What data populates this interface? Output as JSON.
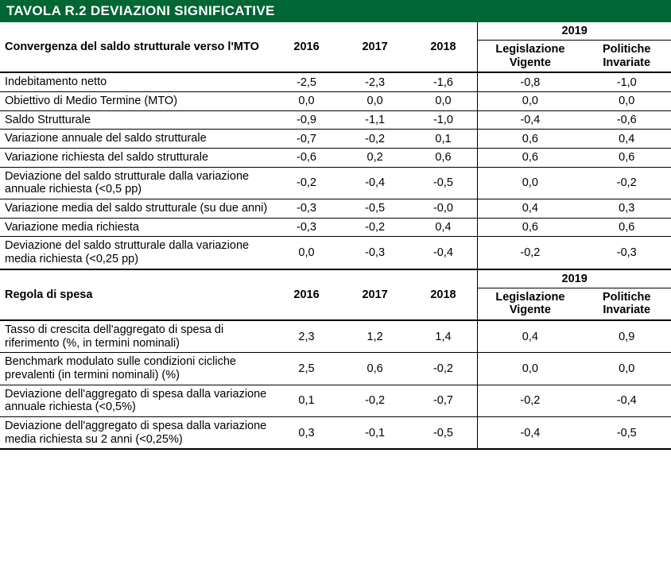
{
  "title": "TAVOLA R.2 DEVIAZIONI SIGNIFICATIVE",
  "colors": {
    "header_bg": "#006633",
    "header_fg": "#ffffff",
    "border": "#000000",
    "text": "#000000"
  },
  "typography": {
    "title_fontsize": 17,
    "body_fontsize": 14.5,
    "font_family": "Arial"
  },
  "section1": {
    "heading": "Convergenza del saldo strutturale verso l'MTO",
    "years": [
      "2016",
      "2017",
      "2018"
    ],
    "group_year": "2019",
    "subcols": [
      "Legislazione Vigente",
      "Politiche Invariate"
    ],
    "rows": [
      {
        "label": "Indebitamento netto",
        "vals": [
          "-2,5",
          "-2,3",
          "-1,6",
          "-0,8",
          "-1,0"
        ]
      },
      {
        "label": "Obiettivo di Medio Termine (MTO)",
        "vals": [
          "0,0",
          "0,0",
          "0,0",
          "0,0",
          "0,0"
        ]
      },
      {
        "label": "Saldo Strutturale",
        "vals": [
          "-0,9",
          "-1,1",
          "-1,0",
          "-0,4",
          "-0,6"
        ]
      },
      {
        "label": "Variazione annuale del saldo strutturale",
        "vals": [
          "-0,7",
          "-0,2",
          "0,1",
          "0,6",
          "0,4"
        ]
      },
      {
        "label": "Variazione richiesta del saldo strutturale",
        "vals": [
          "-0,6",
          "0,2",
          "0,6",
          "0,6",
          "0,6"
        ]
      },
      {
        "label": "Deviazione del saldo strutturale dalla variazione annuale richiesta (<0,5 pp)",
        "vals": [
          "-0,2",
          "-0,4",
          "-0,5",
          "0,0",
          "-0,2"
        ]
      },
      {
        "label": "Variazione media del saldo strutturale (su due anni)",
        "vals": [
          "-0,3",
          "-0,5",
          "-0,0",
          "0,4",
          "0,3"
        ]
      },
      {
        "label": "Variazione media richiesta",
        "vals": [
          "-0,3",
          "-0,2",
          "0,4",
          "0,6",
          "0,6"
        ]
      },
      {
        "label": "Deviazione del saldo strutturale dalla variazione media richiesta (<0,25 pp)",
        "vals": [
          "0,0",
          "-0,3",
          "-0,4",
          "-0,2",
          "-0,3"
        ]
      }
    ]
  },
  "section2": {
    "heading": "Regola di spesa",
    "years": [
      "2016",
      "2017",
      "2018"
    ],
    "group_year": "2019",
    "subcols": [
      "Legislazione Vigente",
      "Politiche Invariate"
    ],
    "rows": [
      {
        "label": "Tasso di crescita  dell'aggregato di  spesa di riferimento (%, in termini nominali)",
        "vals": [
          "2,3",
          "1,2",
          "1,4",
          "0,4",
          "0,9"
        ]
      },
      {
        "label": "Benchmark modulato sulle condizioni cicliche prevalenti (in termini nominali)  (%)",
        "vals": [
          "2,5",
          "0,6",
          "-0,2",
          "0,0",
          "0,0"
        ]
      },
      {
        "label": "Deviazione dell'aggregato di spesa dalla variazione annuale richiesta (<0,5%)",
        "vals": [
          "0,1",
          "-0,2",
          "-0,7",
          "-0,2",
          "-0,4"
        ]
      },
      {
        "label": "Deviazione dell'aggregato di spesa dalla variazione media richiesta su 2 anni (<0,25%)",
        "vals": [
          "0,3",
          "-0,1",
          "-0,5",
          "-0,4",
          "-0,5"
        ]
      }
    ]
  }
}
